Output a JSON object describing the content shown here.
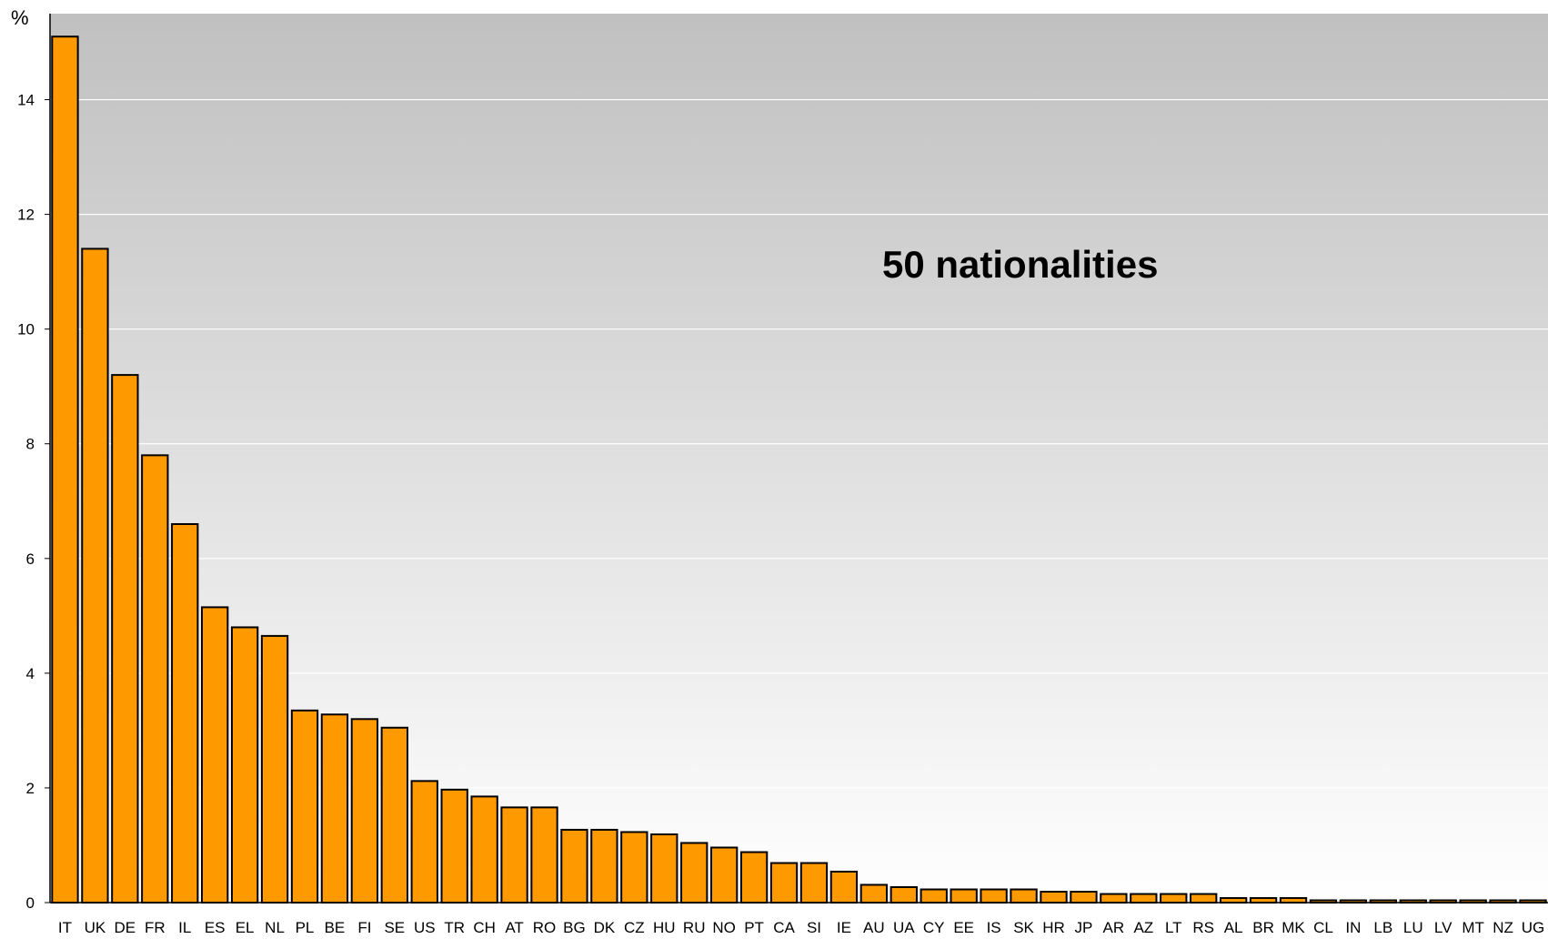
{
  "chart_data": {
    "type": "bar",
    "title": "",
    "xlabel": "",
    "ylabel": "%",
    "ylim": [
      0,
      15.5
    ],
    "yticks": [
      0,
      2,
      4,
      6,
      8,
      10,
      12,
      14
    ],
    "grid": true,
    "annotation": "50 nationalities",
    "categories": [
      "IT",
      "UK",
      "DE",
      "FR",
      "IL",
      "ES",
      "EL",
      "NL",
      "PL",
      "BE",
      "FI",
      "SE",
      "US",
      "TR",
      "CH",
      "AT",
      "RO",
      "BG",
      "DK",
      "CZ",
      "HU",
      "RU",
      "NO",
      "PT",
      "CA",
      "SI",
      "IE",
      "AU",
      "UA",
      "CY",
      "EE",
      "IS",
      "SK",
      "HR",
      "JP",
      "AR",
      "AZ",
      "LT",
      "RS",
      "AL",
      "BR",
      "MK",
      "CL",
      "IN",
      "LB",
      "LU",
      "LV",
      "MT",
      "NZ",
      "UG"
    ],
    "values": [
      15.1,
      11.4,
      9.2,
      7.8,
      6.6,
      5.15,
      4.8,
      4.65,
      3.35,
      3.28,
      3.2,
      3.05,
      2.12,
      1.97,
      1.85,
      1.66,
      1.66,
      1.27,
      1.27,
      1.23,
      1.19,
      1.04,
      0.96,
      0.88,
      0.69,
      0.69,
      0.54,
      0.31,
      0.27,
      0.23,
      0.23,
      0.23,
      0.23,
      0.19,
      0.19,
      0.15,
      0.15,
      0.15,
      0.15,
      0.08,
      0.08,
      0.08,
      0.04,
      0.04,
      0.04,
      0.04,
      0.04,
      0.04,
      0.04,
      0.04
    ],
    "colors": {
      "bar_fill": "#ff9900",
      "bar_stroke": "#000000",
      "background_top": "#c0c0c0",
      "background_bottom": "#ffffff",
      "gridline": "#ffffff"
    }
  }
}
